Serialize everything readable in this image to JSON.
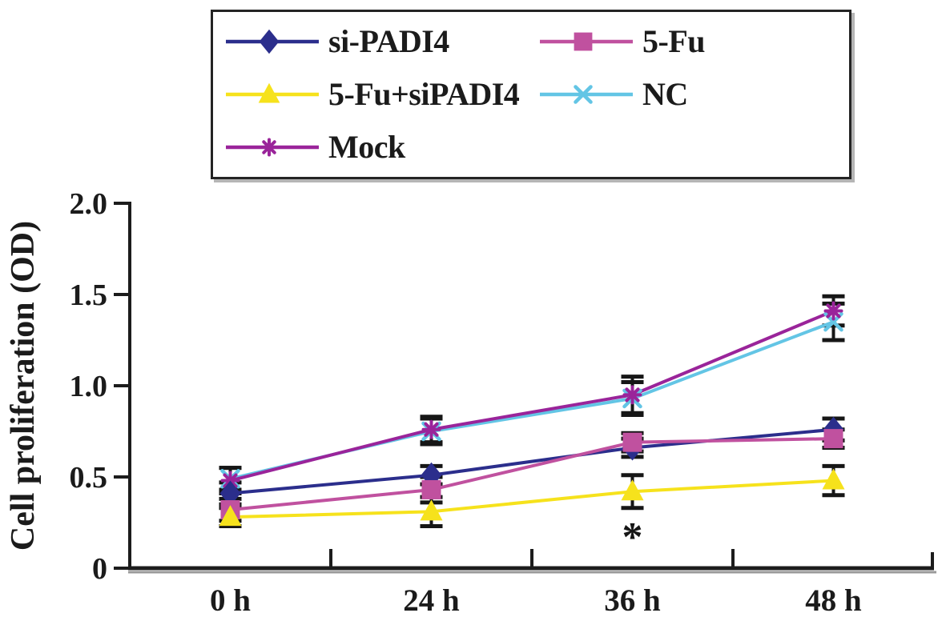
{
  "chart_data": {
    "type": "line",
    "title": "",
    "xlabel": "",
    "ylabel": "Cell proliferation (OD)",
    "categories": [
      "0 h",
      "24 h",
      "36 h",
      "48 h"
    ],
    "ylim": [
      0,
      2.0
    ],
    "yticks": [
      0,
      0.5,
      1.0,
      1.5,
      2.0
    ],
    "ytick_labels": [
      "0",
      "0.5",
      "1.0",
      "1.5",
      "2.0"
    ],
    "grid": false,
    "legend_position": "top-left",
    "axis_color": "#1c1c1c",
    "text_color": "#1b1b1b",
    "error_bar_color": "#161616",
    "series": [
      {
        "name": "si-PADI4",
        "color": "#2b2e8c",
        "marker": "diamond",
        "values": [
          0.41,
          0.51,
          0.66,
          0.76
        ],
        "errors": [
          0.06,
          0.05,
          0.05,
          0.06
        ]
      },
      {
        "name": "5-Fu",
        "color": "#c0519f",
        "marker": "square",
        "values": [
          0.32,
          0.43,
          0.69,
          0.71
        ],
        "errors": [
          0.06,
          0.07,
          0.05,
          0.05
        ]
      },
      {
        "name": "5-Fu+siPADI4",
        "color": "#f6e21c",
        "marker": "triangle",
        "values": [
          0.28,
          0.31,
          0.42,
          0.48
        ],
        "errors": [
          0.05,
          0.08,
          0.09,
          0.08
        ]
      },
      {
        "name": "NC",
        "color": "#63c5e5",
        "marker": "x",
        "values": [
          0.49,
          0.75,
          0.93,
          1.35
        ],
        "errors": [
          0.06,
          0.07,
          0.09,
          0.1
        ]
      },
      {
        "name": "Mock",
        "color": "#9a249a",
        "marker": "asterisk",
        "values": [
          0.48,
          0.76,
          0.95,
          1.41
        ],
        "errors": [
          0.07,
          0.07,
          0.1,
          0.08
        ]
      }
    ],
    "annotations": [
      {
        "text": "*",
        "category": "36 h",
        "od": 0.21
      }
    ]
  }
}
